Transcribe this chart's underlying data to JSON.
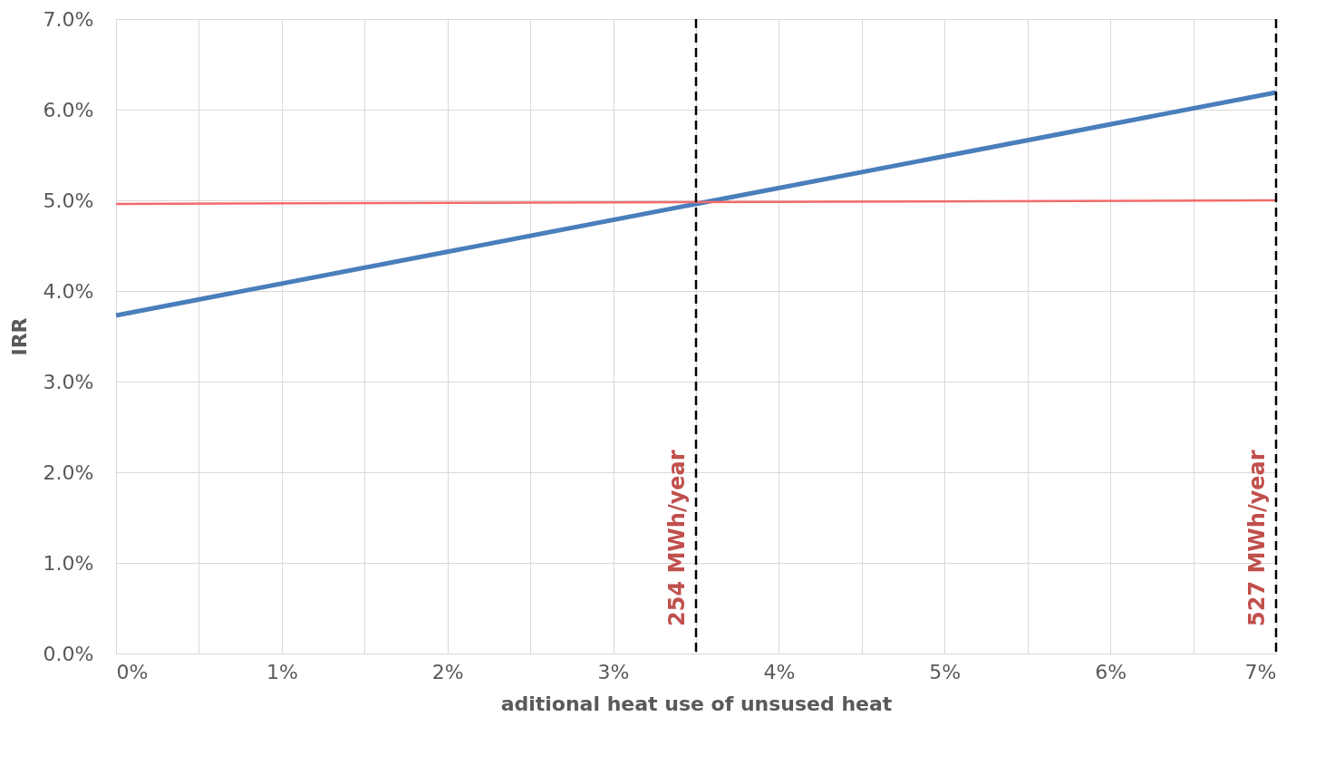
{
  "chart_data": {
    "type": "line",
    "xlabel": "aditional heat use of unsused heat",
    "ylabel": "IRR",
    "x": [
      0,
      7
    ],
    "series": [
      {
        "color": "#4a7ebb",
        "values": [
          3.73,
          6.19
        ]
      },
      {
        "color": "#f26b6b",
        "values": [
          4.96,
          5.0
        ]
      }
    ],
    "xlim": [
      0,
      7
    ],
    "xticks": [
      {
        "value": 0,
        "label": "0%"
      },
      {
        "value": 0.5,
        "label": null
      },
      {
        "value": 1,
        "label": "1%"
      },
      {
        "value": 1.5,
        "label": null
      },
      {
        "value": 2,
        "label": "2%"
      },
      {
        "value": 2.5,
        "label": null
      },
      {
        "value": 3,
        "label": "3%"
      },
      {
        "value": 3.5,
        "label": null
      },
      {
        "value": 4,
        "label": "4%"
      },
      {
        "value": 4.5,
        "label": null
      },
      {
        "value": 5,
        "label": "5%"
      },
      {
        "value": 5.5,
        "label": null
      },
      {
        "value": 6,
        "label": "6%"
      },
      {
        "value": 6.5,
        "label": null
      },
      {
        "value": 7,
        "label": "7%"
      }
    ],
    "ylim": [
      0,
      7
    ],
    "yticks": [
      {
        "value": 0,
        "label": "0.0%"
      },
      {
        "value": 1,
        "label": "1.0%"
      },
      {
        "value": 2,
        "label": "2.0%"
      },
      {
        "value": 3,
        "label": "3.0%"
      },
      {
        "value": 4,
        "label": "4.0%"
      },
      {
        "value": 5,
        "label": "5.0%"
      },
      {
        "value": 6,
        "label": "6.0%"
      },
      {
        "value": 7,
        "label": "7.0%"
      }
    ],
    "ref_lines": [
      {
        "axis": "x",
        "value": 3.5,
        "label": "254 MWh/year",
        "color": "#000000",
        "line_style": "dashed"
      },
      {
        "axis": "x",
        "value": 7,
        "label": "527 MWh/year",
        "color": "#000000",
        "line_style": "dashed"
      }
    ],
    "grid": true,
    "marker": "none"
  }
}
